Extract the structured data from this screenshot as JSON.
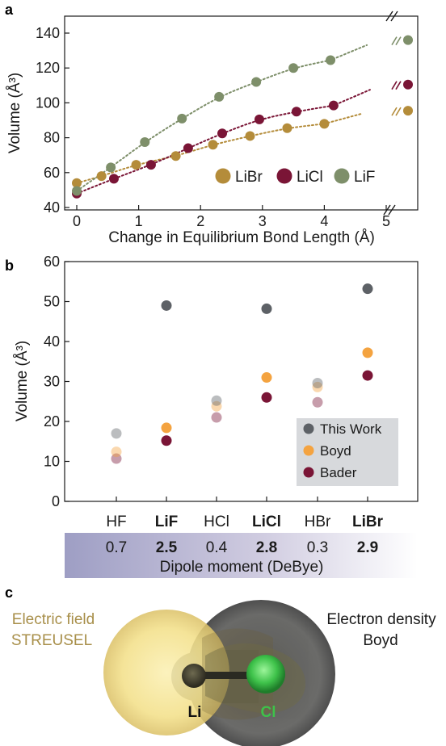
{
  "panel_a": {
    "letter": "a",
    "xlabel": "Change in Equilibrium Bond Length (Å)",
    "ylabel": "Volume (Å³)",
    "x_ticks": [
      "0",
      "1",
      "2",
      "3",
      "4",
      "5"
    ],
    "y_ticks": [
      "40",
      "60",
      "80",
      "100",
      "120",
      "140"
    ],
    "legend": [
      "LiBr",
      "LiCl",
      "LiF"
    ]
  },
  "panel_b": {
    "letter": "b",
    "ylabel": "Volume (Å³)",
    "y_ticks": [
      "0",
      "10",
      "20",
      "30",
      "40",
      "50",
      "60"
    ],
    "legend": [
      "This Work",
      "Boyd",
      "Bader"
    ],
    "categories": [
      "HF",
      "LiF",
      "HCl",
      "LiCl",
      "HBr",
      "LiBr"
    ],
    "dipoles": [
      "0.7",
      "2.5",
      "0.4",
      "2.8",
      "0.3",
      "2.9"
    ],
    "dipole_label": "Dipole moment (DeBye)"
  },
  "panel_c": {
    "letter": "c",
    "left_label_line1": "Electric field",
    "left_label_line2": "STREUSEL",
    "right_label_line1": "Electron density",
    "right_label_line2": "Boyd",
    "atom_li": "Li",
    "atom_cl": "Cl"
  },
  "colors": {
    "LiBr": "#b48c3a",
    "LiCl": "#7a1536",
    "LiF": "#7e8f6a",
    "this_work": "#5d6166",
    "boyd": "#f4a340",
    "bader": "#7a1536",
    "field_yellow": "#f1de80",
    "density_gray": "#5b5b5b",
    "cl_green": "#3ec24a"
  },
  "chart_data": [
    {
      "type": "scatter",
      "title": "",
      "xlabel": "Change in Equilibrium Bond Length (Å)",
      "ylabel": "Volume (Å³)",
      "xlim": [
        -0.2,
        5.3
      ],
      "ylim": [
        40,
        145
      ],
      "grid": false,
      "legend_position": "bottom-right",
      "axis_break": "between 5 and the last point",
      "series": [
        {
          "name": "LiBr",
          "x": [
            0,
            0.4,
            0.96,
            1.6,
            2.2,
            2.8,
            3.4,
            4.0,
            "broken-axis"
          ],
          "y": [
            54,
            58,
            64.5,
            69.5,
            76,
            81,
            85.5,
            88,
            95.5
          ]
        },
        {
          "name": "LiCl",
          "x": [
            0,
            0.6,
            1.2,
            1.8,
            2.35,
            2.95,
            3.55,
            4.15,
            "broken-axis"
          ],
          "y": [
            48,
            56.5,
            64.5,
            74,
            82.5,
            90.5,
            95,
            98.5,
            110.5
          ]
        },
        {
          "name": "LiF",
          "x": [
            0,
            0.55,
            1.1,
            1.7,
            2.3,
            2.9,
            3.5,
            4.1,
            "broken-axis"
          ],
          "y": [
            49.5,
            63,
            77.5,
            91,
            103.5,
            112,
            120,
            124.5,
            136
          ]
        }
      ]
    },
    {
      "type": "scatter",
      "title": "",
      "xlabel": "",
      "ylabel": "Volume (Å³)",
      "ylim": [
        0,
        60
      ],
      "grid": false,
      "legend_position": "bottom-right",
      "categories": [
        "HF",
        "LiF",
        "HCl",
        "LiCl",
        "HBr",
        "LiBr"
      ],
      "series": [
        {
          "name": "This Work",
          "values": [
            17,
            49,
            25.2,
            48.2,
            29.6,
            53.2
          ]
        },
        {
          "name": "Boyd",
          "values": [
            12.4,
            18.4,
            23.8,
            31,
            28.6,
            37.2
          ]
        },
        {
          "name": "Bader",
          "values": [
            10.7,
            15.2,
            21,
            26,
            24.8,
            31.5
          ]
        }
      ]
    }
  ]
}
